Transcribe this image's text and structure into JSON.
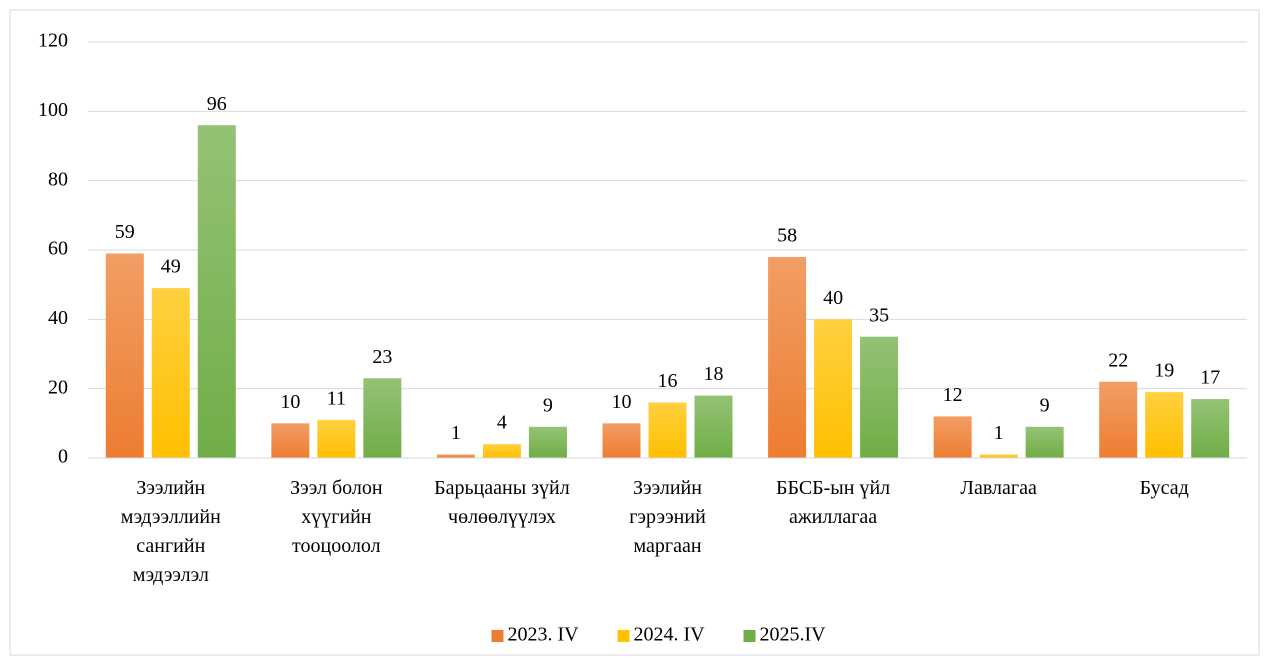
{
  "chart_data": {
    "type": "bar",
    "categories": [
      "Зээлийн мэдээллийн сангийн мэдээлэл",
      "Зээл болон хүүгийн тооцоолол",
      "Барьцааны зүйл чөлөөлүүлэх",
      "Зээлийн гэрээний маргаан",
      "ББСБ-ын үйл ажиллагаа",
      "Лавлагаа",
      "Бусад"
    ],
    "series": [
      {
        "name": "2023. IV",
        "color": "#ed7d31",
        "values": [
          59,
          10,
          1,
          10,
          58,
          12,
          22
        ]
      },
      {
        "name": "2024. IV",
        "color": "#ffc000",
        "values": [
          49,
          11,
          4,
          16,
          40,
          1,
          19
        ]
      },
      {
        "name": "2025.IV",
        "color": "#70ad47",
        "values": [
          96,
          23,
          9,
          18,
          35,
          9,
          17
        ]
      }
    ],
    "ylim": [
      0,
      120
    ],
    "yticks": [
      0,
      20,
      40,
      60,
      80,
      100,
      120
    ],
    "grid": true,
    "legend": "bottom"
  }
}
